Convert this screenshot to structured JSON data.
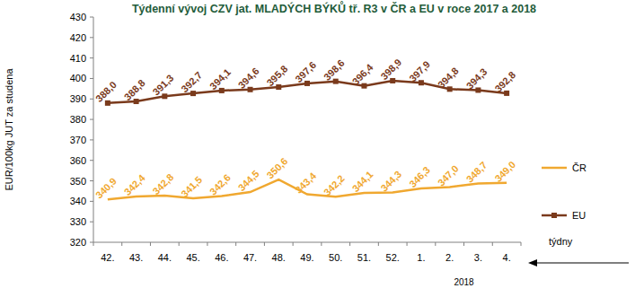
{
  "chart_data": {
    "type": "line",
    "title": "Týdenní vývoj CZV jat. MLADÝCH BÝKŮ tř. R3  v ČR a EU v roce 2017 a 2018",
    "y_label": "EUR/100kg JUT za studena",
    "x_label": "týdny",
    "annotation": "2018",
    "categories": [
      "42.",
      "43.",
      "44.",
      "45.",
      "46.",
      "47.",
      "48.",
      "49.",
      "50.",
      "51.",
      "52.",
      "1.",
      "2.",
      "3.",
      "4."
    ],
    "series": [
      {
        "name": "ČR",
        "color": "#f0a830",
        "marker": "none",
        "line_style": "solid",
        "values": [
          340.9,
          342.4,
          342.8,
          341.5,
          342.6,
          344.5,
          350.6,
          343.4,
          342.2,
          344.1,
          344.3,
          346.3,
          347.0,
          348.7,
          349.0
        ],
        "value_labels": [
          "340,9",
          "342,4",
          "342,8",
          "341,5",
          "342,6",
          "344,5",
          "350,6",
          "343,4",
          "342,2",
          "344,1",
          "344,3",
          "346,3",
          "347,0",
          "348,7",
          "349,0"
        ]
      },
      {
        "name": "EU",
        "color": "#7a3a1c",
        "marker": "square",
        "line_style": "solid",
        "values": [
          388.0,
          388.8,
          391.3,
          392.7,
          394.1,
          394.6,
          395.8,
          397.6,
          398.6,
          396.4,
          398.9,
          397.9,
          394.8,
          394.3,
          392.8
        ],
        "value_labels": [
          "388,0",
          "388,8",
          "391,3",
          "392,7",
          "394,1",
          "394,6",
          "395,8",
          "397,6",
          "398,6",
          "396,4",
          "398,9",
          "397,9",
          "394,8",
          "394,3",
          "392,8"
        ]
      }
    ],
    "ylim": [
      320,
      430
    ],
    "yticks": [
      320,
      330,
      340,
      350,
      360,
      370,
      380,
      390,
      400,
      410,
      420,
      430
    ],
    "grid": false,
    "legend": "right",
    "data_labels": true
  }
}
